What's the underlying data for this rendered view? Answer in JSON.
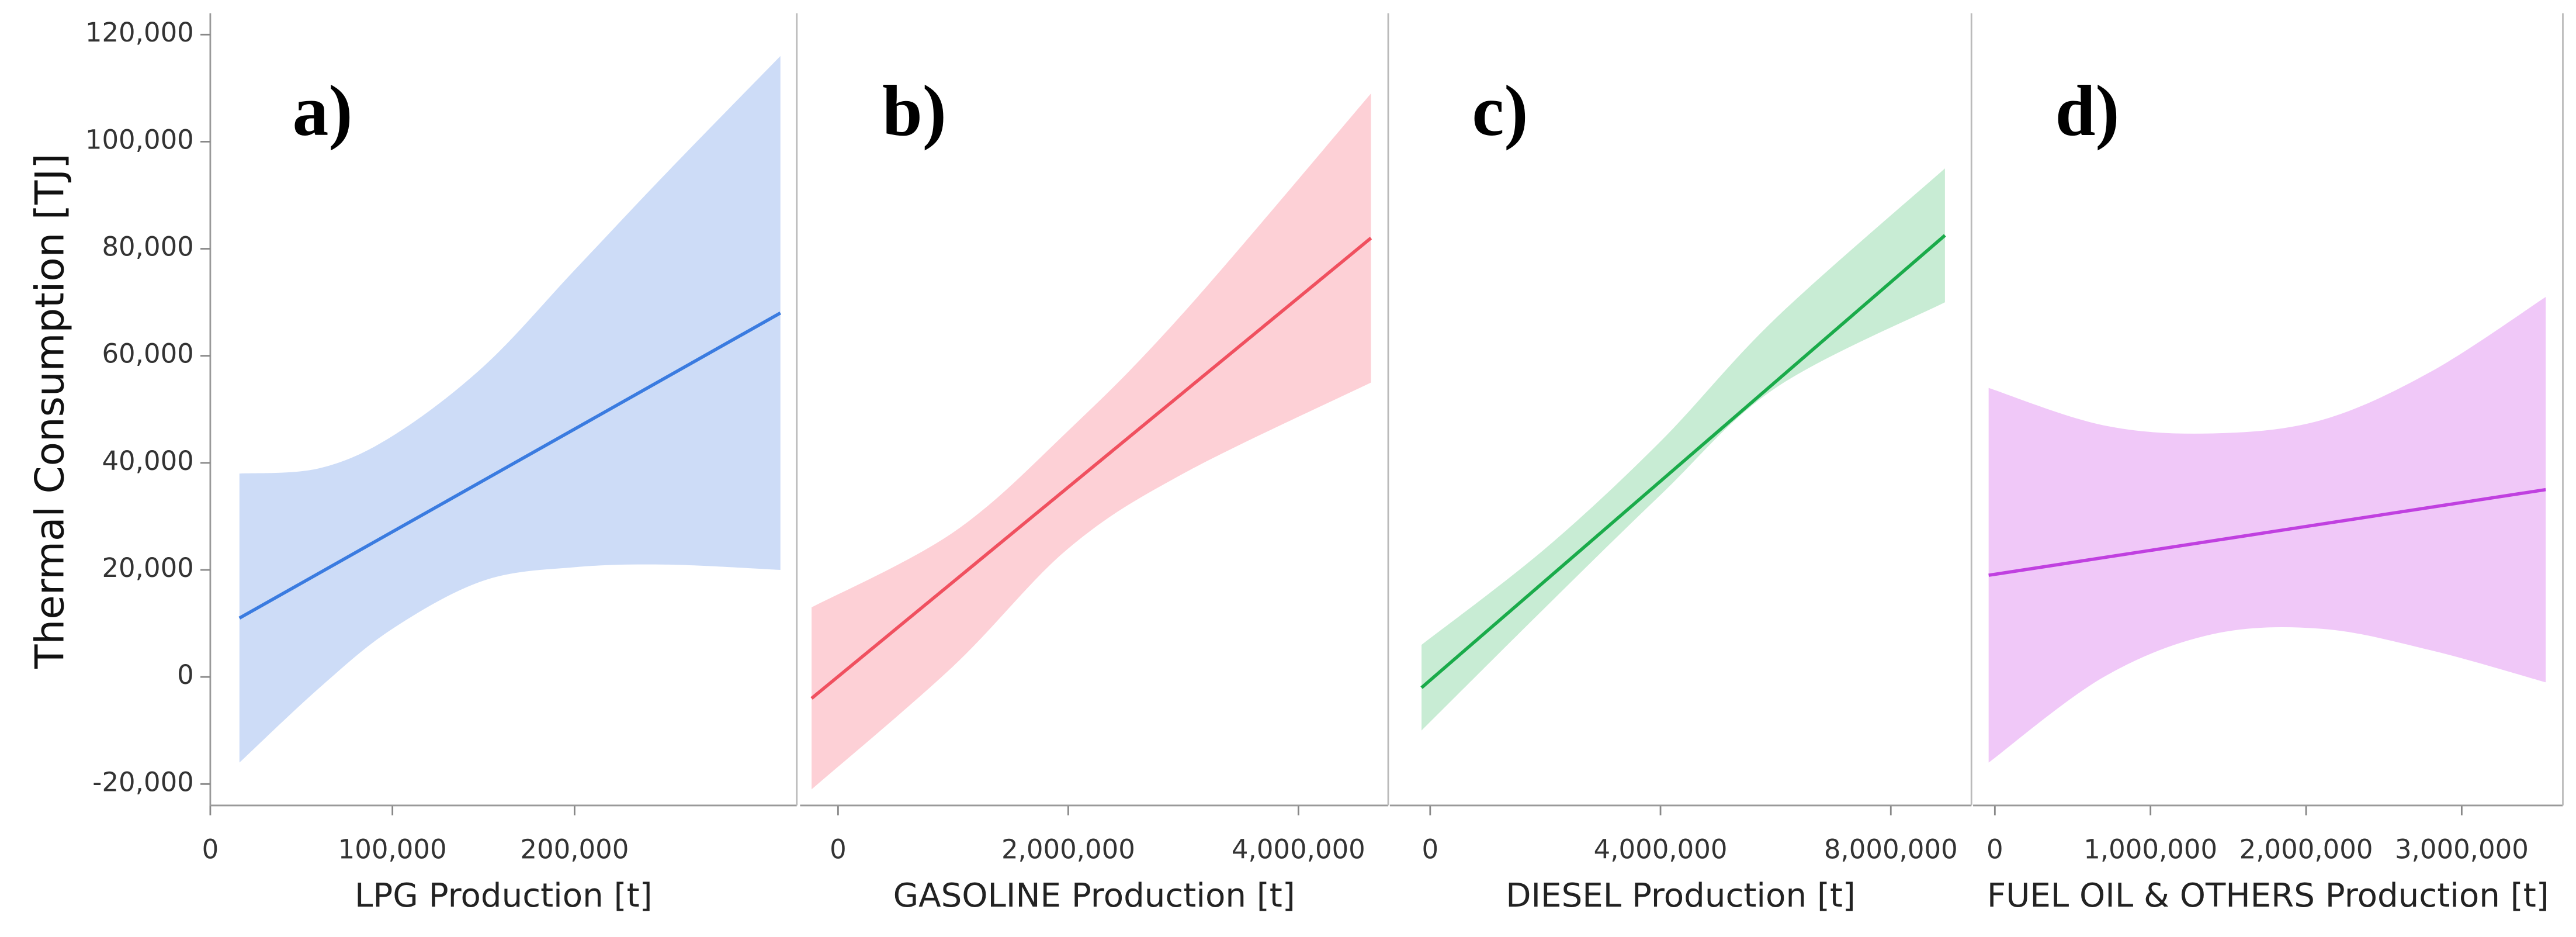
{
  "chart_data": [
    {
      "type": "line",
      "panel_label": "a)",
      "y_label": "Thermal Consumption [TJ]",
      "x_label": "LPG Production [t]",
      "xlim": [
        0,
        322000
      ],
      "ylim": [
        -24000,
        124000
      ],
      "xticks": [
        0,
        {
          "value": 100000,
          "label": "100,000"
        },
        {
          "value": 200000,
          "label": "200,000"
        }
      ],
      "yticks": [
        {
          "value": -20000,
          "label": "-20,000"
        },
        0,
        {
          "value": 20000,
          "label": "20,000"
        },
        {
          "value": 40000,
          "label": "40,000"
        },
        {
          "value": 60000,
          "label": "60,000"
        },
        {
          "value": 80000,
          "label": "80,000"
        },
        {
          "value": 100000,
          "label": "100,000"
        },
        {
          "value": 120000,
          "label": "120,000"
        }
      ],
      "fit": {
        "color": "#3a7be0",
        "x": [
          16000,
          313000
        ],
        "values": [
          11000,
          68000
        ]
      },
      "band": {
        "color": "#cddcf7",
        "x": [
          16000,
          60000,
          100000,
          150000,
          200000,
          250000,
          313000
        ],
        "upper": [
          38000,
          39000,
          45000,
          58000,
          76000,
          94000,
          116000
        ],
        "lower": [
          -16000,
          -2000,
          9000,
          18000,
          20500,
          21000,
          20000
        ]
      }
    },
    {
      "type": "line",
      "panel_label": "b)",
      "x_label": "GASOLINE Production [t]",
      "xlim": [
        -330000,
        4780000
      ],
      "ylim": [
        -24000,
        124000
      ],
      "xticks": [
        0,
        {
          "value": 2000000,
          "label": "2,000,000"
        },
        {
          "value": 4000000,
          "label": "4,000,000"
        }
      ],
      "fit": {
        "color": "#f0505f",
        "x": [
          -230000,
          4630000
        ],
        "values": [
          -4000,
          82000
        ]
      },
      "band": {
        "color": "#fdd0d6",
        "x": [
          -230000,
          1000000,
          2000000,
          3000000,
          4630000
        ],
        "upper": [
          13000,
          27000,
          46000,
          68000,
          109000
        ],
        "lower": [
          -21000,
          2000,
          24000,
          38000,
          55000
        ]
      }
    },
    {
      "type": "line",
      "panel_label": "c)",
      "x_label": "DIESEL Production [t]",
      "xlim": [
        -700000,
        9400000
      ],
      "ylim": [
        -24000,
        124000
      ],
      "xticks": [
        0,
        {
          "value": 4000000,
          "label": "4,000,000"
        },
        {
          "value": 8000000,
          "label": "8,000,000"
        }
      ],
      "fit": {
        "color": "#1aab4a",
        "x": [
          -150000,
          8940000
        ],
        "values": [
          -2000,
          82500
        ]
      },
      "band": {
        "color": "#c8ecd4",
        "x": [
          -150000,
          2000000,
          4000000,
          6000000,
          8940000
        ],
        "upper": [
          6000,
          24000,
          44000,
          67000,
          95000
        ],
        "lower": [
          -10000,
          13000,
          34000,
          54000,
          70000
        ]
      }
    },
    {
      "type": "line",
      "panel_label": "d)",
      "x_label": "FUEL OIL & OTHERS Production [t]",
      "xlim": [
        -140000,
        3650000
      ],
      "ylim": [
        -24000,
        124000
      ],
      "xticks": [
        0,
        {
          "value": 1000000,
          "label": "1,000,000"
        },
        {
          "value": 2000000,
          "label": "2,000,000"
        },
        {
          "value": 3000000,
          "label": "3,000,000"
        }
      ],
      "fit": {
        "color": "#c040e0",
        "x": [
          -40000,
          3540000
        ],
        "values": [
          19000,
          35000
        ]
      },
      "band": {
        "color": "#f0c8f8",
        "x": [
          -40000,
          700000,
          1400000,
          2100000,
          2800000,
          3540000
        ],
        "upper": [
          54000,
          47000,
          45500,
          48000,
          57000,
          71000
        ],
        "lower": [
          -16000,
          0,
          8000,
          9000,
          5000,
          -1000
        ]
      }
    }
  ]
}
